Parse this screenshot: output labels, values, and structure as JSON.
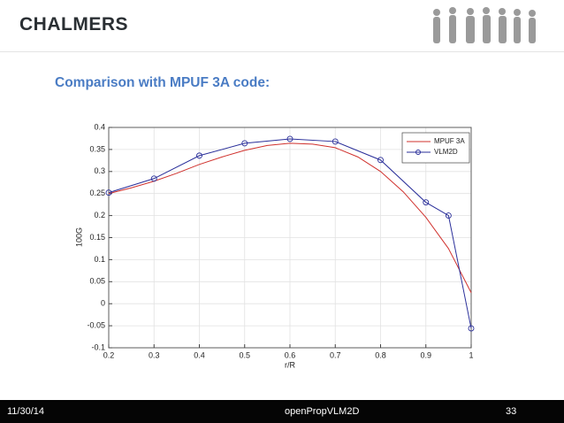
{
  "header": {
    "logo": "CHALMERS"
  },
  "slide_title": "Comparison with MPUF 3A code:",
  "chart_data": {
    "type": "line",
    "xlabel": "r/R",
    "ylabel": "100G",
    "xlim": [
      0.2,
      1
    ],
    "ylim": [
      -0.1,
      0.4
    ],
    "xticks": [
      0.2,
      0.3,
      0.4,
      0.5,
      0.6,
      0.7,
      0.8,
      0.9,
      1
    ],
    "yticks": [
      -0.1,
      -0.05,
      0,
      0.05,
      0.1,
      0.15,
      0.2,
      0.25,
      0.3,
      0.35,
      0.4
    ],
    "grid": true,
    "legend": "upper-right",
    "series": [
      {
        "name": "MPUF 3A",
        "color": "#d0312d",
        "marker": false,
        "x": [
          0.2,
          0.25,
          0.3,
          0.35,
          0.4,
          0.45,
          0.5,
          0.55,
          0.6,
          0.65,
          0.7,
          0.75,
          0.8,
          0.85,
          0.9,
          0.95,
          1
        ],
        "values": [
          0.25,
          0.263,
          0.278,
          0.296,
          0.316,
          0.333,
          0.348,
          0.359,
          0.364,
          0.362,
          0.354,
          0.333,
          0.3,
          0.254,
          0.196,
          0.125,
          0.025
        ]
      },
      {
        "name": "VLM2D",
        "color": "#2a2f9a",
        "marker": true,
        "x": [
          0.2,
          0.3,
          0.4,
          0.5,
          0.6,
          0.7,
          0.8,
          0.9,
          0.95,
          1
        ],
        "values": [
          0.252,
          0.284,
          0.336,
          0.364,
          0.374,
          0.368,
          0.326,
          0.23,
          0.2,
          -0.056
        ]
      }
    ]
  },
  "footer": {
    "date": "11/30/14",
    "center": "openPropVLM2D",
    "page": "33"
  }
}
